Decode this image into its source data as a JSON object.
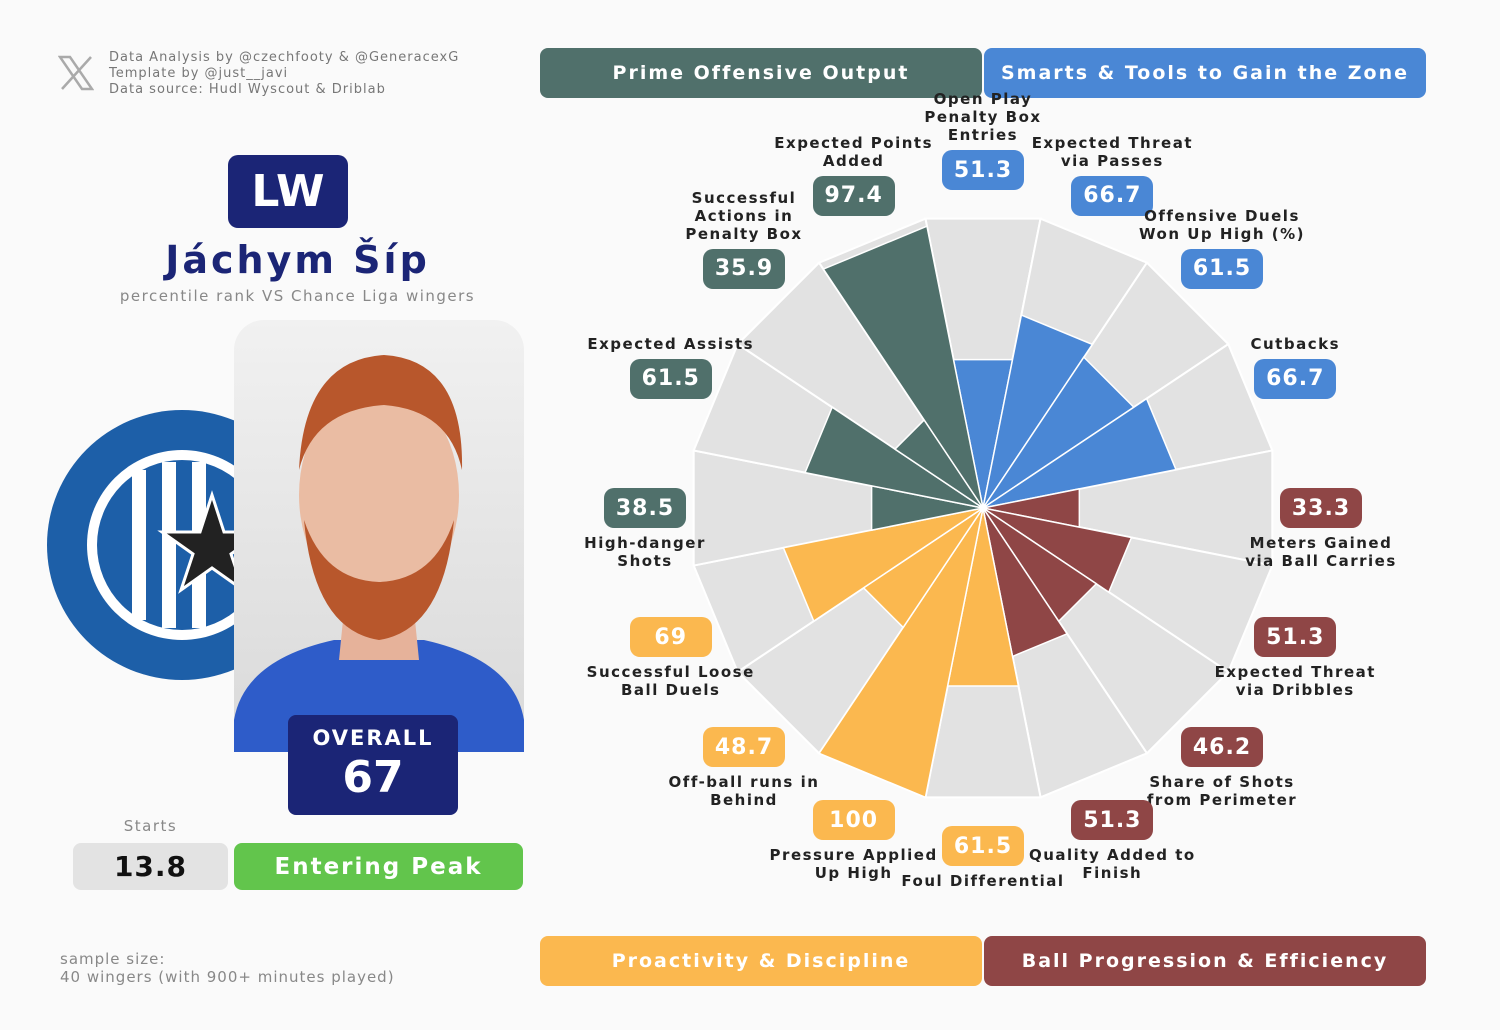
{
  "credits": [
    "Data Analysis by @czechfooty & @GeneracexG",
    "Template by @just__javi",
    "Data source: Hudl Wyscout & Driblab"
  ],
  "player": {
    "position": "LW",
    "name": "Jáchym Šíp",
    "subtitle": "percentile rank VS Chance Liga wingers",
    "overall_label": "OVERALL",
    "overall": 67,
    "starts_label": "Starts",
    "starts": 13.8,
    "status": "Entering Peak"
  },
  "footer": [
    "sample size:",
    "40 wingers (with 900+ minutes played)"
  ],
  "chart_data": {
    "type": "polar-bar",
    "legend": [
      {
        "name": "Prime Offensive Output",
        "color": "#50706b"
      },
      {
        "name": "Smarts & Tools to Gain the Zone",
        "color": "#4a87d5"
      },
      {
        "name": "Proactivity & Discipline",
        "color": "#fbb84f"
      },
      {
        "name": "Ball Progression & Efficiency",
        "color": "#8f4646"
      }
    ],
    "categories": [
      "Open Play Penalty Box Entries",
      "Expected Threat via Passes",
      "Offensive Duels Won Up High (%)",
      "Cutbacks",
      "Meters Gained via Ball Carries",
      "Expected Threat via Dribbles",
      "Share of Shots from Perimeter",
      "Quality Added to Finish",
      "Foul Differential",
      "Pressure Applied Up High",
      "Off-ball runs in Behind",
      "Successful Loose Ball Duels",
      "High-danger Shots",
      "Expected Assists",
      "Successful Actions in Penalty Box",
      "Expected Points Added"
    ],
    "values": [
      51.3,
      66.7,
      61.5,
      66.7,
      33.3,
      51.3,
      46.2,
      51.3,
      61.5,
      100,
      48.7,
      69,
      38.5,
      61.5,
      35.9,
      97.4
    ],
    "colors": [
      "#4a87d5",
      "#4a87d5",
      "#4a87d5",
      "#4a87d5",
      "#8f4646",
      "#8f4646",
      "#8f4646",
      "#8f4646",
      "#fbb84f",
      "#fbb84f",
      "#fbb84f",
      "#fbb84f",
      "#50706b",
      "#50706b",
      "#50706b",
      "#50706b"
    ],
    "rlim": [
      0,
      100
    ]
  }
}
